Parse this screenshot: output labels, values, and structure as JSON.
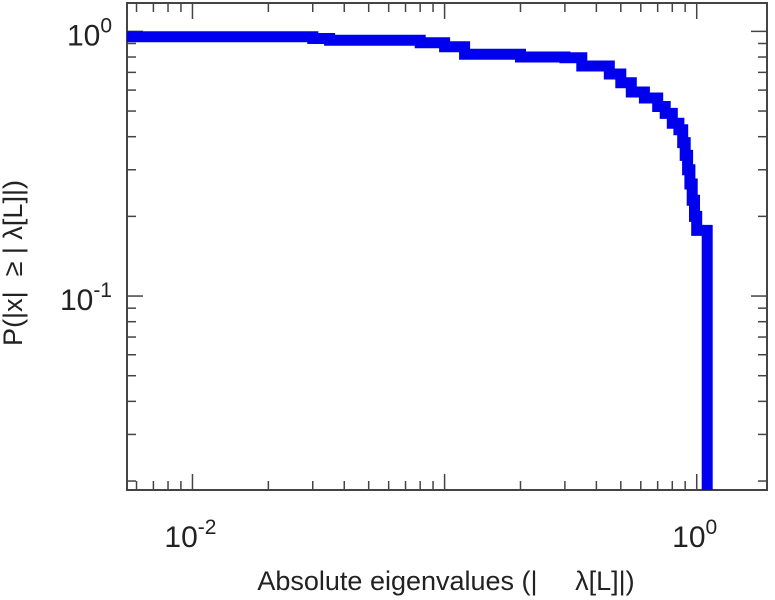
{
  "chart_data": {
    "type": "line",
    "step": true,
    "xscale": "log",
    "yscale": "log",
    "xlim": [
      0.0055,
      1.9
    ],
    "ylim": [
      0.0185,
      1.28
    ],
    "xlabel": "Absolute eigenvalues (|     λ[L]|)",
    "ylabel": "P(|x|  ≥ | λ[L]|)",
    "grid": false,
    "series_color": "#0000ee",
    "x_ticks": [
      {
        "value": 0.01,
        "base": "10",
        "exp": "-2"
      },
      {
        "value": 1,
        "base": "10",
        "exp": "0"
      }
    ],
    "y_ticks": [
      {
        "value": 1,
        "base": "10",
        "exp": "0"
      },
      {
        "value": 0.1,
        "base": "10",
        "exp": "-1"
      }
    ],
    "series": [
      {
        "x": [
          0.0055,
          0.03,
          0.035,
          0.08,
          0.1,
          0.12,
          0.2,
          0.3,
          0.35,
          0.45,
          0.5,
          0.55,
          0.62,
          0.7,
          0.75,
          0.8,
          0.85,
          0.88,
          0.9,
          0.92,
          0.94,
          0.96,
          0.98,
          1.0,
          1.05,
          1.1
        ],
        "y": [
          0.955,
          0.94,
          0.925,
          0.905,
          0.875,
          0.82,
          0.8,
          0.795,
          0.74,
          0.69,
          0.64,
          0.59,
          0.56,
          0.52,
          0.49,
          0.45,
          0.425,
          0.38,
          0.34,
          0.3,
          0.265,
          0.23,
          0.2,
          0.177,
          0.177,
          0.0185
        ]
      }
    ]
  }
}
